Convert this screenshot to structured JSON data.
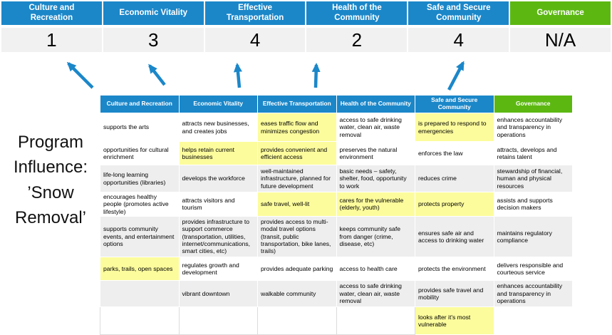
{
  "program_label": "Program\nInfluence:\n’Snow\nRemoval’",
  "colors": {
    "header_blue": "#1B87C9",
    "header_green": "#5CB811",
    "highlight_yellow": "#FCFC9D",
    "row_alt_grey": "#EEEEEE",
    "score_row_grey": "#F1F1F1",
    "arrow_blue": "#1B87C9"
  },
  "scorecard": {
    "columns": [
      {
        "label": "Culture and Recreation",
        "score": "1",
        "theme": "blue"
      },
      {
        "label": "Economic Vitality",
        "score": "3",
        "theme": "blue"
      },
      {
        "label": "Effective Transportation",
        "score": "4",
        "theme": "blue"
      },
      {
        "label": "Health of the Community",
        "score": "2",
        "theme": "blue"
      },
      {
        "label": "Safe and Secure Community",
        "score": "4",
        "theme": "blue"
      },
      {
        "label": "Governance",
        "score": "N/A",
        "theme": "green"
      }
    ]
  },
  "matrix": {
    "headers": [
      {
        "label": "Culture and Recreation",
        "theme": "blue"
      },
      {
        "label": "Economic Vitality",
        "theme": "blue"
      },
      {
        "label": "Effective Transportation",
        "theme": "blue"
      },
      {
        "label": "Health of the Community",
        "theme": "blue"
      },
      {
        "label": "Safe and Secure Community",
        "theme": "blue"
      },
      {
        "label": "Governance",
        "theme": "green"
      }
    ],
    "rows": [
      {
        "shade": "white",
        "cells": [
          {
            "text": "supports the arts",
            "hl": false
          },
          {
            "text": "attracts new businesses, and creates jobs",
            "hl": false
          },
          {
            "text": "eases traffic flow and minimizes congestion",
            "hl": true
          },
          {
            "text": "access to safe drinking water, clean air, waste removal",
            "hl": false
          },
          {
            "text": "is prepared to respond to emergencies",
            "hl": true
          },
          {
            "text": "enhances accountability and transparency in operations",
            "hl": false
          }
        ]
      },
      {
        "shade": "white",
        "cells": [
          {
            "text": "opportunities for cultural enrichment",
            "hl": false
          },
          {
            "text": "helps retain current businesses",
            "hl": true
          },
          {
            "text": "provides convenient and efficient access",
            "hl": true
          },
          {
            "text": "preserves the natural environment",
            "hl": false
          },
          {
            "text": "enforces the law",
            "hl": false
          },
          {
            "text": "attracts, develops and retains talent",
            "hl": false
          }
        ]
      },
      {
        "shade": "grey",
        "cells": [
          {
            "text": "life-long learning opportunities (libraries)",
            "hl": false
          },
          {
            "text": "develops the workforce",
            "hl": false
          },
          {
            "text": "well-maintained infrastructure, planned for future development",
            "hl": false
          },
          {
            "text": "basic needs – safety, shelter, food, opportunity to work",
            "hl": true
          },
          {
            "text": "reduces crime",
            "hl": false
          },
          {
            "text": "stewardship of financial, human and physical resources",
            "hl": false
          }
        ]
      },
      {
        "shade": "white",
        "cells": [
          {
            "text": "encourages healthy people (promotes active lifestyle)",
            "hl": false
          },
          {
            "text": "attracts visitors and tourism",
            "hl": false
          },
          {
            "text": "safe travel, well-lit",
            "hl": true
          },
          {
            "text": "cares for the vulnerable (elderly, youth)",
            "hl": true
          },
          {
            "text": "protects property",
            "hl": true
          },
          {
            "text": "assists and supports decision makers",
            "hl": false
          }
        ]
      },
      {
        "shade": "grey",
        "cells": [
          {
            "text": "supports community events, and entertainment options",
            "hl": false
          },
          {
            "text": "provides infrastructure to support commerce (transportation, utilities, internet/communications, smart cities, etc)",
            "hl": true
          },
          {
            "text": "provides access to multi-modal travel options (transit, public transportation, bike lanes, trails)",
            "hl": true
          },
          {
            "text": "keeps community safe from danger (crime, disease, etc)",
            "hl": true
          },
          {
            "text": "ensures safe air and access to drinking water",
            "hl": false
          },
          {
            "text": "maintains regulatory compliance",
            "hl": false
          }
        ]
      },
      {
        "shade": "white",
        "cells": [
          {
            "text": "parks, trails, open spaces",
            "hl": true
          },
          {
            "text": "regulates growth and development",
            "hl": false
          },
          {
            "text": "provides adequate parking",
            "hl": false
          },
          {
            "text": "access to health care",
            "hl": false
          },
          {
            "text": "protects the environment",
            "hl": false
          },
          {
            "text": "delivers responsible and courteous service",
            "hl": false
          }
        ]
      },
      {
        "shade": "grey",
        "cells": [
          {
            "text": "",
            "hl": false
          },
          {
            "text": "vibrant downtown",
            "hl": false
          },
          {
            "text": "walkable community",
            "hl": false
          },
          {
            "text": "access to safe drinking water, clean air, waste removal",
            "hl": false
          },
          {
            "text": "provides safe travel and mobility",
            "hl": true
          },
          {
            "text": "enhances accountability and transparency in operations",
            "hl": false
          }
        ]
      },
      {
        "shade": "empty",
        "cells": [
          {
            "text": "",
            "hl": false
          },
          {
            "text": "",
            "hl": false
          },
          {
            "text": "",
            "hl": false
          },
          {
            "text": "",
            "hl": false
          },
          {
            "text": "looks after it's most vulnerable",
            "hl": true
          },
          {
            "text": "",
            "hl": false
          }
        ]
      }
    ]
  }
}
